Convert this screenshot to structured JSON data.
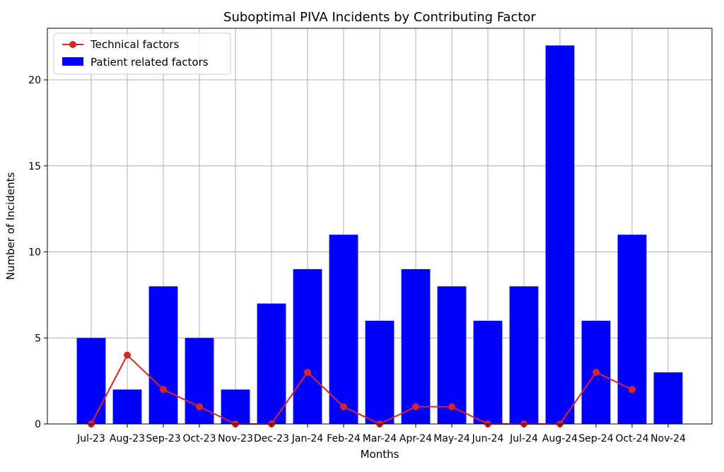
{
  "chart_data": {
    "type": "bar",
    "title": "Suboptimal PIVA Incidents by Contributing Factor",
    "xlabel": "Months",
    "ylabel": "Number of Incidents",
    "categories": [
      "Jul-23",
      "Aug-23",
      "Sep-23",
      "Oct-23",
      "Nov-23",
      "Dec-23",
      "Jan-24",
      "Feb-24",
      "Mar-24",
      "Apr-24",
      "May-24",
      "Jun-24",
      "Jul-24",
      "Aug-24",
      "Sep-24",
      "Oct-24",
      "Nov-24"
    ],
    "ylim": [
      0,
      23
    ],
    "yticks": [
      0,
      5,
      10,
      15,
      20
    ],
    "grid": true,
    "legend_position": "top-left",
    "series": [
      {
        "name": "Technical factors",
        "kind": "line",
        "color": "#d62728",
        "values": [
          0,
          4,
          2,
          1,
          0,
          0,
          3,
          1,
          0,
          1,
          1,
          0,
          0,
          0,
          3,
          2,
          null
        ]
      },
      {
        "name": "Patient related factors",
        "kind": "bar",
        "color": "#0000ff",
        "values": [
          5,
          2,
          8,
          5,
          2,
          7,
          9,
          11,
          6,
          9,
          8,
          6,
          8,
          22,
          6,
          11,
          3
        ]
      }
    ]
  }
}
